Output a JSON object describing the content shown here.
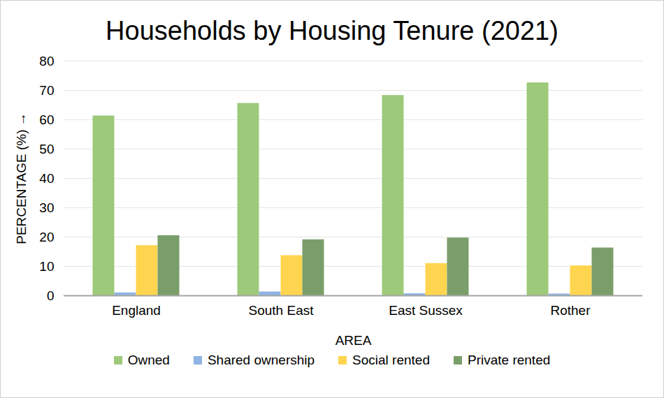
{
  "chart_data": {
    "type": "bar",
    "title": "Households by Housing Tenure (2021)",
    "x_label": "AREA",
    "y_label": "PERCENTAGE (%)",
    "categories": [
      "England",
      "South East",
      "East Sussex",
      "Rother"
    ],
    "series": [
      {
        "name": "Owned",
        "color": "#9dc97a",
        "values": [
          61.3,
          65.6,
          68.3,
          72.6
        ]
      },
      {
        "name": "Shared ownership",
        "color": "#8fb4e3",
        "values": [
          1.0,
          1.3,
          0.7,
          0.6
        ]
      },
      {
        "name": "Social rented",
        "color": "#ffd54f",
        "values": [
          17.1,
          13.7,
          11.0,
          10.2
        ]
      },
      {
        "name": "Private rented",
        "color": "#7a9e6a",
        "values": [
          20.5,
          19.1,
          19.7,
          16.3
        ]
      }
    ],
    "ylim": [
      0,
      80
    ],
    "yticks": [
      0,
      10,
      20,
      30,
      40,
      50,
      60,
      70,
      80
    ],
    "grid": true,
    "legend": "bottom"
  }
}
